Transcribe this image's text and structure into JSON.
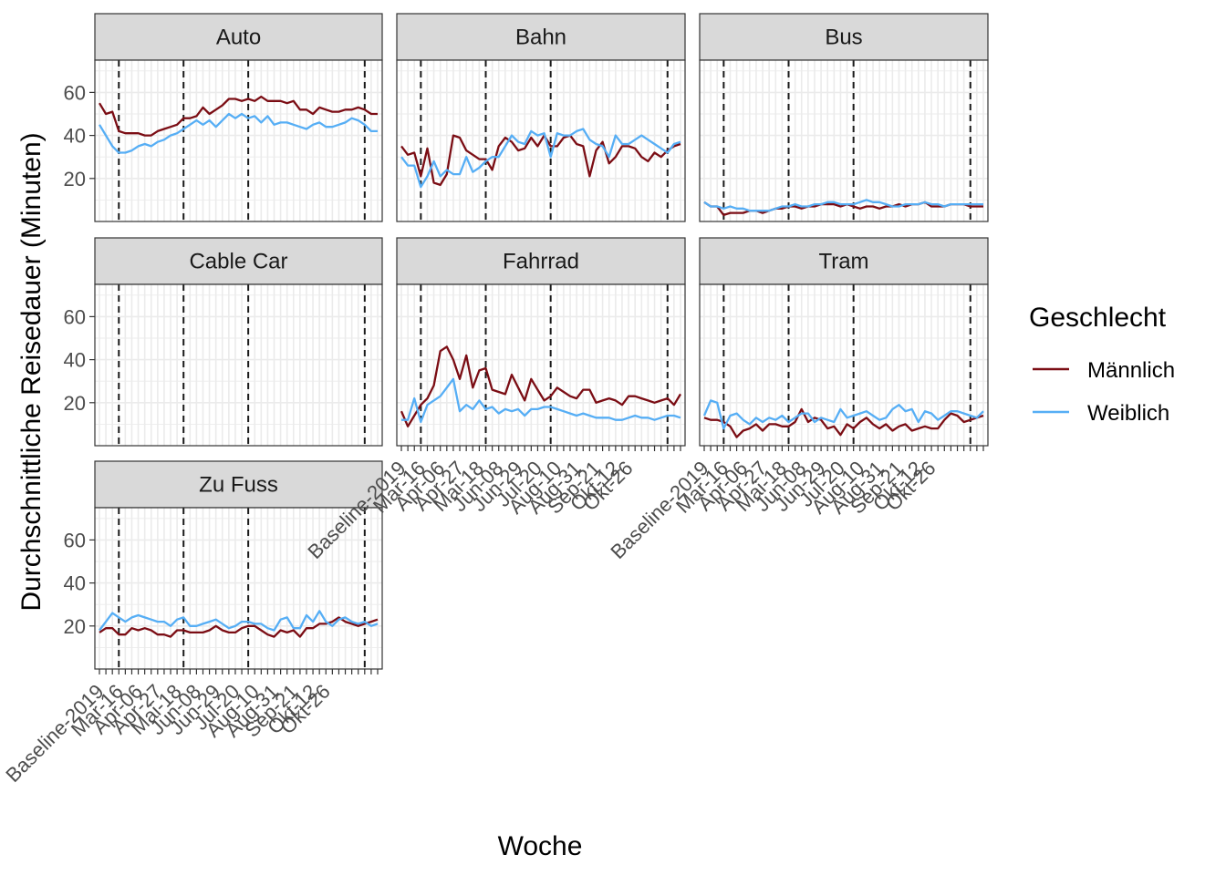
{
  "chart_data": {
    "type": "line",
    "xlabel": "Woche",
    "ylabel": "Durchschnittliche Reisedauer (Minuten)",
    "ylim": [
      0,
      75
    ],
    "y_ticks": [
      20,
      40,
      60
    ],
    "grid": true,
    "facet_layout": "wrap 3 columns",
    "legend": {
      "title": "Geschlecht",
      "placement": "right",
      "entries": [
        {
          "name": "Männlich",
          "color": "#7b0d14"
        },
        {
          "name": "Weiblich",
          "color": "#56aef5"
        }
      ]
    },
    "x_tick_labels": [
      "Baseline-2019",
      "Mar-16",
      "Apr-06",
      "Apr-27",
      "Mai-18",
      "Jun-08",
      "Jun-29",
      "Jul-20",
      "Aug-10",
      "Aug-31",
      "Sep-21",
      "Okt-12",
      "Okt-26"
    ],
    "x_tick_label_index": [
      0,
      3,
      6,
      9,
      12,
      15,
      18,
      21,
      24,
      27,
      30,
      33,
      35
    ],
    "reference_weeks_index": [
      3,
      13,
      23,
      41
    ],
    "n_weeks": 44,
    "panels": [
      {
        "label": "Auto",
        "series": [
          {
            "name": "Männlich",
            "values": [
              55,
              50,
              51,
              42,
              41,
              41,
              41,
              40,
              40,
              42,
              43,
              44,
              45,
              48,
              48,
              49,
              53,
              50,
              52,
              54,
              57,
              57,
              56,
              57,
              56,
              58,
              56,
              56,
              56,
              55,
              56,
              52,
              52,
              50,
              53,
              52,
              51,
              51,
              52,
              52,
              53,
              52,
              50,
              50
            ]
          },
          {
            "name": "Weiblich",
            "values": [
              45,
              40,
              35,
              32,
              32,
              33,
              35,
              36,
              35,
              37,
              38,
              40,
              41,
              43,
              45,
              47,
              45,
              47,
              44,
              47,
              50,
              48,
              50,
              48,
              49,
              46,
              49,
              45,
              46,
              46,
              45,
              44,
              43,
              45,
              46,
              44,
              44,
              45,
              46,
              48,
              47,
              45,
              42,
              42
            ]
          }
        ]
      },
      {
        "label": "Bahn",
        "series": [
          {
            "name": "Männlich",
            "values": [
              35,
              31,
              32,
              21,
              34,
              18,
              17,
              22,
              40,
              39,
              33,
              31,
              29,
              29,
              24,
              35,
              39,
              37,
              33,
              34,
              39,
              35,
              40,
              35,
              35,
              39,
              40,
              36,
              35,
              21,
              33,
              37,
              27,
              30,
              35,
              35,
              34,
              30,
              28,
              32,
              30,
              33,
              35,
              36
            ]
          },
          {
            "name": "Weiblich",
            "values": [
              30,
              26,
              26,
              16,
              21,
              28,
              21,
              24,
              22,
              22,
              30,
              23,
              25,
              28,
              30,
              30,
              35,
              40,
              37,
              36,
              42,
              40,
              41,
              30,
              41,
              40,
              40,
              42,
              43,
              38,
              36,
              35,
              30,
              40,
              36,
              36,
              38,
              40,
              38,
              36,
              34,
              32,
              36,
              37
            ]
          }
        ]
      },
      {
        "label": "Bus",
        "series": [
          {
            "name": "Männlich",
            "values": [
              9,
              7,
              7,
              3,
              4,
              4,
              4,
              5,
              5,
              4,
              5,
              6,
              6,
              7,
              7,
              6,
              7,
              7,
              8,
              8,
              8,
              7,
              8,
              7,
              6,
              7,
              7,
              6,
              7,
              7,
              8,
              7,
              8,
              8,
              9,
              7,
              7,
              7,
              8,
              8,
              8,
              7,
              7,
              7
            ]
          },
          {
            "name": "Weiblich",
            "values": [
              9,
              7,
              7,
              6,
              7,
              6,
              6,
              5,
              5,
              5,
              5,
              6,
              7,
              7,
              8,
              7,
              7,
              8,
              8,
              9,
              9,
              8,
              8,
              8,
              9,
              10,
              9,
              9,
              8,
              7,
              7,
              8,
              8,
              8,
              9,
              8,
              8,
              7,
              8,
              8,
              8,
              8,
              8,
              8
            ]
          }
        ]
      },
      {
        "label": "Cable Car",
        "series": []
      },
      {
        "label": "Fahrrad",
        "series": [
          {
            "name": "Männlich",
            "values": [
              16,
              9,
              14,
              19,
              22,
              28,
              44,
              46,
              40,
              31,
              42,
              27,
              35,
              36,
              26,
              25,
              24,
              33,
              27,
              21,
              31,
              26,
              21,
              23,
              27,
              25,
              23,
              22,
              26,
              26,
              20,
              21,
              22,
              21,
              19,
              23,
              23,
              22,
              21,
              20,
              21,
              22,
              19,
              24
            ]
          },
          {
            "name": "Weiblich",
            "values": [
              12,
              12,
              22,
              11,
              19,
              21,
              23,
              27,
              31,
              16,
              19,
              17,
              21,
              17,
              18,
              15,
              17,
              16,
              17,
              14,
              17,
              17,
              18,
              18,
              17,
              16,
              15,
              14,
              15,
              14,
              13,
              13,
              13,
              12,
              12,
              13,
              14,
              13,
              13,
              12,
              13,
              14,
              14,
              13
            ]
          }
        ]
      },
      {
        "label": "Tram",
        "series": [
          {
            "name": "Männlich",
            "values": [
              13,
              12,
              12,
              11,
              9,
              4,
              7,
              8,
              10,
              7,
              10,
              10,
              9,
              9,
              11,
              17,
              11,
              13,
              12,
              8,
              9,
              5,
              10,
              8,
              11,
              13,
              10,
              8,
              10,
              7,
              9,
              10,
              7,
              8,
              9,
              8,
              8,
              12,
              15,
              14,
              11,
              12,
              13,
              14
            ]
          },
          {
            "name": "Weiblich",
            "values": [
              14,
              21,
              20,
              8,
              14,
              15,
              12,
              10,
              13,
              11,
              13,
              12,
              14,
              11,
              13,
              15,
              15,
              11,
              13,
              12,
              11,
              17,
              13,
              14,
              15,
              16,
              14,
              12,
              13,
              17,
              19,
              16,
              17,
              11,
              16,
              15,
              12,
              14,
              16,
              16,
              15,
              14,
              13,
              16
            ]
          }
        ]
      },
      {
        "label": "Zu Fuss",
        "series": [
          {
            "name": "Männlich",
            "values": [
              17,
              19,
              19,
              16,
              16,
              19,
              18,
              19,
              18,
              16,
              16,
              15,
              18,
              18,
              17,
              17,
              17,
              18,
              20,
              18,
              17,
              17,
              19,
              20,
              20,
              18,
              16,
              15,
              18,
              17,
              18,
              15,
              19,
              19,
              21,
              21,
              22,
              24,
              22,
              21,
              20,
              21,
              22,
              23
            ]
          },
          {
            "name": "Weiblich",
            "values": [
              18,
              22,
              26,
              24,
              22,
              24,
              25,
              24,
              23,
              22,
              22,
              20,
              23,
              24,
              20,
              20,
              21,
              22,
              23,
              21,
              19,
              20,
              22,
              22,
              21,
              21,
              19,
              18,
              23,
              24,
              19,
              19,
              25,
              22,
              27,
              22,
              20,
              23,
              24,
              22,
              21,
              22,
              20,
              21
            ]
          }
        ]
      }
    ]
  }
}
